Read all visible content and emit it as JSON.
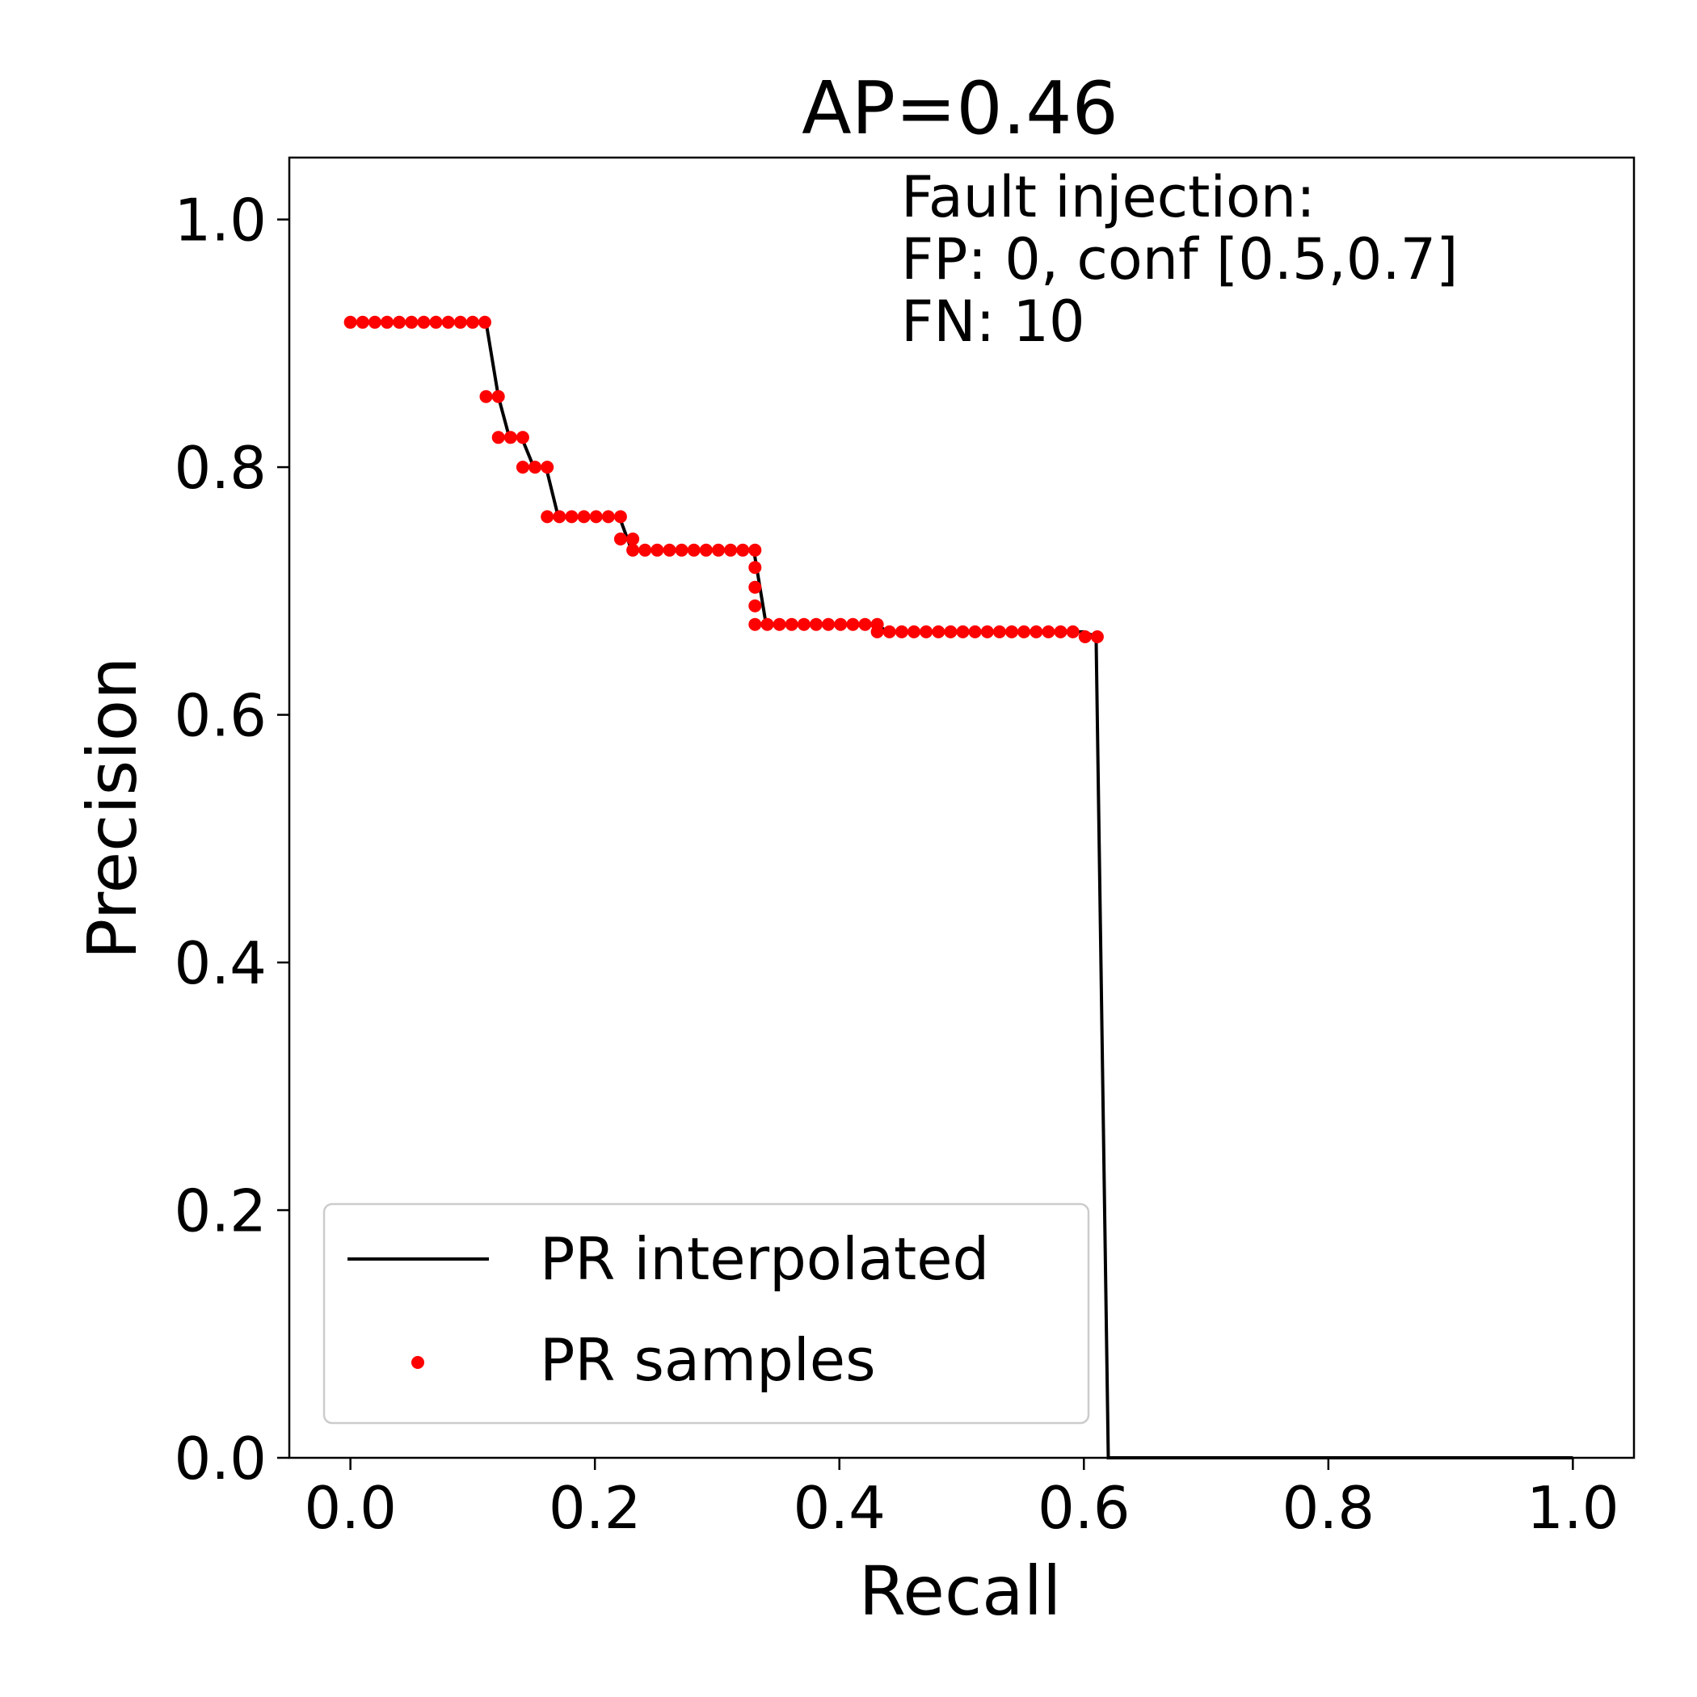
{
  "chart_data": {
    "type": "line",
    "title": "AP=0.46",
    "xlabel": "Recall",
    "ylabel": "Precision",
    "xlim": [
      -0.05,
      1.05
    ],
    "ylim": [
      0.0,
      1.05
    ],
    "x_ticks": [
      "0.0",
      "0.2",
      "0.4",
      "0.6",
      "0.8",
      "1.0"
    ],
    "y_ticks": [
      "0.0",
      "0.2",
      "0.4",
      "0.6",
      "0.8",
      "1.0"
    ],
    "grid": false,
    "annotation": [
      "Fault injection:",
      "FP: 0, conf [0.5,0.7]",
      "FN: 10"
    ],
    "legend": {
      "position": "lower-left",
      "entries": [
        "PR interpolated",
        "PR samples"
      ]
    },
    "colors": {
      "interpolated": "#000000",
      "samples": "#ff0000"
    },
    "series": [
      {
        "name": "PR interpolated",
        "style": "line",
        "x": [
          0.0,
          0.111,
          0.121,
          0.13,
          0.14,
          0.15,
          0.16,
          0.17,
          0.22,
          0.23,
          0.33,
          0.34,
          0.43,
          0.44,
          0.6,
          0.61,
          0.62,
          1.0
        ],
        "y": [
          0.917,
          0.917,
          0.857,
          0.824,
          0.824,
          0.8,
          0.8,
          0.76,
          0.76,
          0.733,
          0.733,
          0.673,
          0.673,
          0.667,
          0.667,
          0.663,
          0.0,
          0.0
        ]
      },
      {
        "name": "PR samples",
        "style": "scatter",
        "x": [
          0.0,
          0.01,
          0.02,
          0.03,
          0.04,
          0.05,
          0.06,
          0.07,
          0.08,
          0.09,
          0.1,
          0.11,
          0.111,
          0.121,
          0.121,
          0.131,
          0.141,
          0.141,
          0.151,
          0.161,
          0.161,
          0.171,
          0.181,
          0.191,
          0.201,
          0.211,
          0.221,
          0.221,
          0.231,
          0.231,
          0.241,
          0.251,
          0.261,
          0.271,
          0.281,
          0.291,
          0.301,
          0.311,
          0.321,
          0.331,
          0.331,
          0.331,
          0.331,
          0.331,
          0.341,
          0.351,
          0.361,
          0.371,
          0.381,
          0.391,
          0.401,
          0.411,
          0.421,
          0.431,
          0.431,
          0.441,
          0.451,
          0.461,
          0.471,
          0.481,
          0.491,
          0.501,
          0.511,
          0.521,
          0.531,
          0.541,
          0.551,
          0.561,
          0.571,
          0.581,
          0.591,
          0.601,
          0.611
        ],
        "y": [
          0.917,
          0.917,
          0.917,
          0.917,
          0.917,
          0.917,
          0.917,
          0.917,
          0.917,
          0.917,
          0.917,
          0.917,
          0.857,
          0.857,
          0.824,
          0.824,
          0.824,
          0.8,
          0.8,
          0.8,
          0.76,
          0.76,
          0.76,
          0.76,
          0.76,
          0.76,
          0.76,
          0.742,
          0.742,
          0.733,
          0.733,
          0.733,
          0.733,
          0.733,
          0.733,
          0.733,
          0.733,
          0.733,
          0.733,
          0.733,
          0.719,
          0.703,
          0.688,
          0.673,
          0.673,
          0.673,
          0.673,
          0.673,
          0.673,
          0.673,
          0.673,
          0.673,
          0.673,
          0.673,
          0.667,
          0.667,
          0.667,
          0.667,
          0.667,
          0.667,
          0.667,
          0.667,
          0.667,
          0.667,
          0.667,
          0.667,
          0.667,
          0.667,
          0.667,
          0.667,
          0.667,
          0.663,
          0.663
        ]
      }
    ]
  }
}
